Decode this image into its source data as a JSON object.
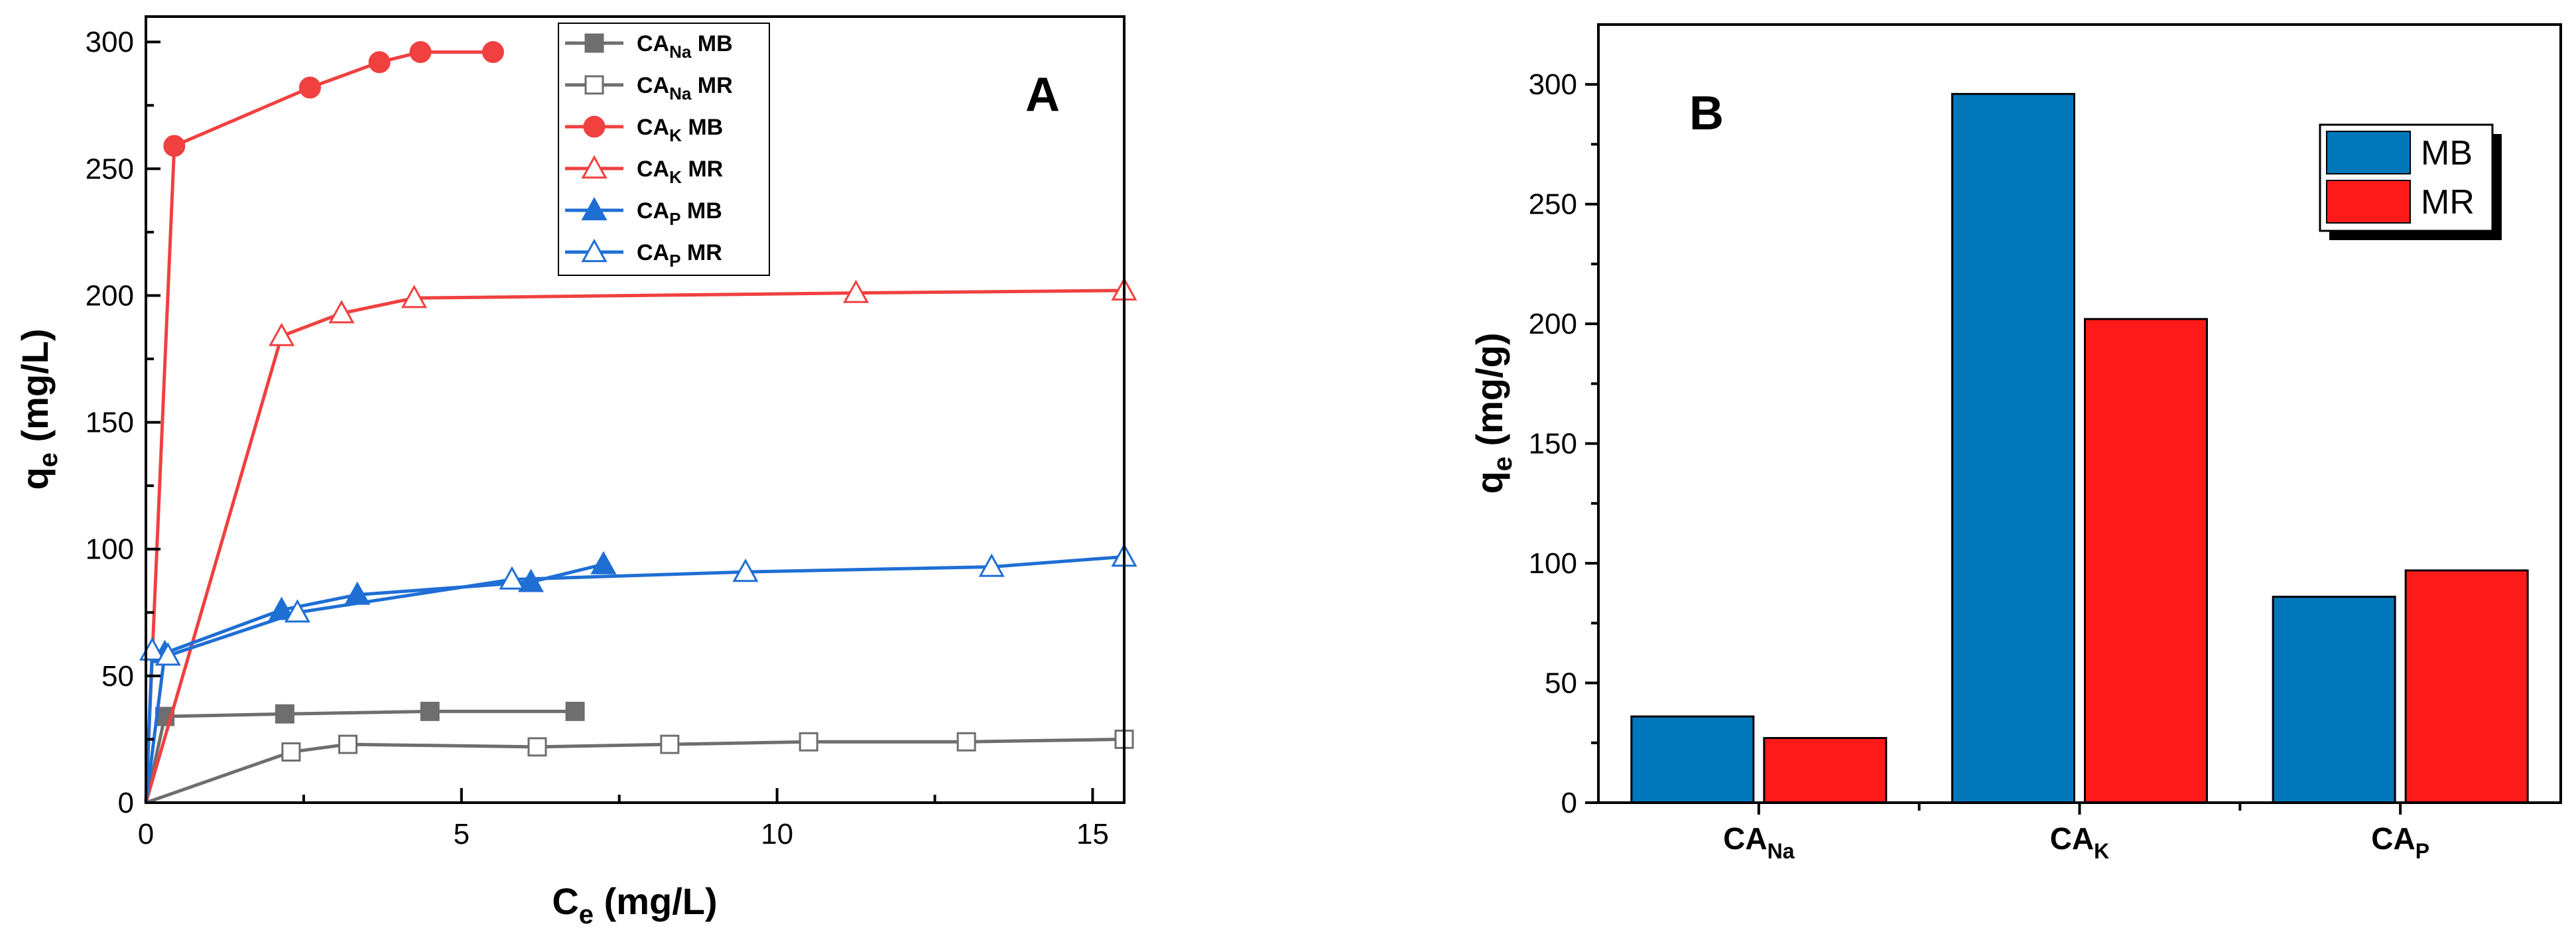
{
  "chart_data": [
    {
      "type": "line",
      "panel_label": "A",
      "xlabel": "C",
      "xlabel_sub": "e",
      "xlabel_unit": " (mg/L)",
      "ylabel": "q",
      "ylabel_sub": "e",
      "ylabel_unit": " (mg/L)",
      "xlim": [
        0,
        15.5
      ],
      "ylim": [
        0,
        310
      ],
      "xticks": [
        0,
        5,
        10,
        15
      ],
      "xticks_minor": [
        2.5,
        7.5,
        12.5
      ],
      "yticks": [
        0,
        50,
        100,
        150,
        200,
        250,
        300
      ],
      "yticks_minor": [
        25,
        75,
        125,
        175,
        225,
        275
      ],
      "legend_position": "top-center",
      "series": [
        {
          "name": "CA",
          "name_sub": "Na",
          "name_suffix": " MB",
          "color": "#6e6e6e",
          "marker": "square",
          "filled": true,
          "x": [
            0,
            0.3,
            2.2,
            4.5,
            6.8
          ],
          "y": [
            0,
            34,
            35,
            36,
            36
          ]
        },
        {
          "name": "CA",
          "name_sub": "Na",
          "name_suffix": " MR",
          "color": "#6e6e6e",
          "marker": "square",
          "filled": false,
          "x": [
            0,
            2.3,
            3.2,
            6.2,
            8.3,
            10.5,
            13.0,
            15.5
          ],
          "y": [
            0,
            20,
            23,
            22,
            23,
            24,
            24,
            25
          ]
        },
        {
          "name": "CA",
          "name_sub": "K",
          "name_suffix": " MB",
          "color": "#f04040",
          "marker": "circle",
          "filled": true,
          "x": [
            0,
            0.45,
            2.6,
            3.7,
            4.35,
            5.5
          ],
          "y": [
            0,
            259,
            282,
            292,
            296,
            296
          ]
        },
        {
          "name": "CA",
          "name_sub": "K",
          "name_suffix": " MR",
          "color": "#f04040",
          "marker": "triangle",
          "filled": false,
          "x": [
            0,
            2.15,
            3.1,
            4.25,
            11.25,
            15.5
          ],
          "y": [
            0,
            184,
            193,
            199,
            201,
            202
          ]
        },
        {
          "name": "CA",
          "name_sub": "P",
          "name_suffix": " MB",
          "color": "#1f6ed4",
          "marker": "triangle",
          "filled": true,
          "x": [
            0,
            0.3,
            2.15,
            3.35,
            6.1,
            7.25
          ],
          "y": [
            0,
            59,
            76,
            82,
            87,
            94
          ]
        },
        {
          "name": "CA",
          "name_sub": "P",
          "name_suffix": " MR",
          "color": "#1f6ed4",
          "marker": "triangle",
          "filled": false,
          "x": [
            0,
            0.1,
            0.35,
            2.4,
            5.8,
            9.5,
            13.4,
            15.5
          ],
          "y": [
            0,
            60,
            58,
            75,
            88,
            91,
            93,
            97
          ]
        }
      ]
    },
    {
      "type": "bar",
      "panel_label": "B",
      "ylabel": "q",
      "ylabel_sub": "e",
      "ylabel_unit": " (mg/g)",
      "ylim": [
        0,
        325
      ],
      "yticks": [
        0,
        50,
        100,
        150,
        200,
        250,
        300
      ],
      "yticks_minor": [
        25,
        75,
        125,
        175,
        225,
        275
      ],
      "legend_position": "top-right",
      "categories": [
        {
          "name": "CA",
          "sub": "Na"
        },
        {
          "name": "CA",
          "sub": "K"
        },
        {
          "name": "CA",
          "sub": "P"
        }
      ],
      "series": [
        {
          "name": "MB",
          "color": "#0077bb",
          "values": [
            36,
            296,
            86
          ]
        },
        {
          "name": "MR",
          "color": "#ff1a1a",
          "values": [
            27,
            202,
            97
          ]
        }
      ]
    }
  ]
}
